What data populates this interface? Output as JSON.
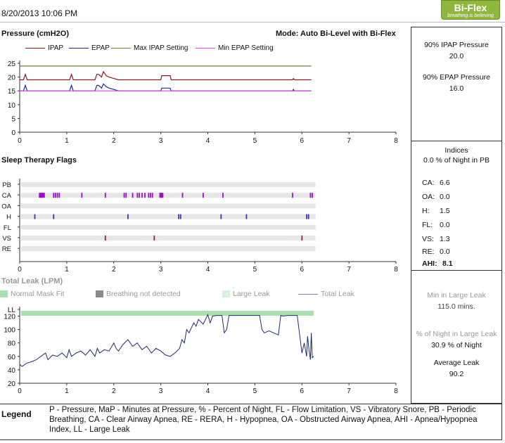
{
  "header": {
    "date": "8/20/2013 10:06 PM",
    "brand_name": "Bi-Flex",
    "brand_tagline": "breathing is believing",
    "brand_color": "#8fb63f"
  },
  "pressure": {
    "title": "Pressure (cmH2O)",
    "mode": "Mode: Auto Bi-Level with Bi-Flex",
    "legend": [
      {
        "label": "IPAP",
        "color": "#8b1a1a"
      },
      {
        "label": "EPAP",
        "color": "#1a2a9c"
      },
      {
        "label": "Max IPAP Setting",
        "color": "#7a7a3a"
      },
      {
        "label": "Min EPAP Setting",
        "color": "#e040e0"
      }
    ],
    "stats": {
      "ipap_label": "90% IPAP Pressure",
      "ipap_value": "20.0",
      "epap_label": "90% EPAP Pressure",
      "epap_value": "16.0"
    }
  },
  "flags": {
    "title": "Sleep Therapy Flags",
    "indices_title": "Indices",
    "pb_night": "0.0 % of Night in PB",
    "indices": [
      {
        "label": "CA:",
        "value": "6.6"
      },
      {
        "label": "OA:",
        "value": "0.0"
      },
      {
        "label": "H:",
        "value": "1.5"
      },
      {
        "label": "FL:",
        "value": "0.0"
      },
      {
        "label": "VS:",
        "value": "1.3"
      },
      {
        "label": "RE:",
        "value": "0.0"
      }
    ],
    "ahi_label": "AHI:",
    "ahi_value": "8.1"
  },
  "leak": {
    "title": "Total Leak (LPM)",
    "legend": [
      {
        "label": "Normal Mask Fit",
        "color": "#a8e0b0",
        "kind": "box"
      },
      {
        "label": "Breathing not detected",
        "color": "#8a8a8a",
        "kind": "box"
      },
      {
        "label": "Large Leak",
        "color": "#d8f0dc",
        "kind": "box"
      },
      {
        "label": "Total Leak",
        "color": "#7a80b8",
        "kind": "line"
      }
    ],
    "stats": {
      "min_label": "Min in Large Leak",
      "min_value": "115.0 mins.",
      "pct_label": "% of Night in Large Leak",
      "pct_value": "30.9 % of Night",
      "avg_label": "Average Leak",
      "avg_value": "90.2"
    }
  },
  "legend": {
    "title": "Legend",
    "text": "P - Pressure, MaP - Minutes at Pressure, % - Percent of Night, FL - Flow Limitation, VS - Vibratory Snore, PB - Periodic Breathing, CA - Clear Airway Apnea, RE - RERA, H - Hypopnea, OA - Obstructed Airway Apnea, AHI - Apnea/Hypopnea Index, LL - Large Leak"
  },
  "chart_data": [
    {
      "type": "line",
      "title": "Pressure (cmH2O)",
      "xlim": [
        0,
        8
      ],
      "ylim": [
        0,
        25
      ],
      "x_ticks": [
        "0",
        "1",
        "2",
        "3",
        "4",
        "5",
        "6",
        "7",
        "8"
      ],
      "y_ticks": [
        "0",
        "5",
        "10",
        "15",
        "20",
        "25"
      ],
      "series": [
        {
          "name": "Max IPAP Setting",
          "color": "#7a7a3a",
          "x": [
            0,
            6.2
          ],
          "y": [
            24,
            24
          ]
        },
        {
          "name": "IPAP",
          "color": "#8b1a1a",
          "x": [
            0,
            0.08,
            0.12,
            0.16,
            0.2,
            1,
            1.06,
            1.1,
            1.14,
            1.6,
            1.64,
            1.68,
            1.74,
            1.78,
            1.84,
            1.9,
            2,
            2.1,
            3,
            3.02,
            3.2,
            3.22,
            5.8,
            5.82,
            5.84,
            6.2
          ],
          "y": [
            19,
            19,
            21,
            19,
            19,
            19,
            19,
            21,
            19,
            19,
            21,
            21,
            20,
            22,
            20.5,
            20,
            19.5,
            19,
            19,
            20.5,
            20.5,
            19,
            19,
            19.5,
            19,
            19
          ]
        },
        {
          "name": "EPAP",
          "color": "#1a2a9c",
          "x": [
            0,
            0.08,
            0.12,
            0.16,
            0.2,
            1,
            1.06,
            1.1,
            1.14,
            1.6,
            1.64,
            1.68,
            1.74,
            1.78,
            1.84,
            1.9,
            2,
            2.1,
            3,
            3.02,
            3.2,
            3.22,
            5.8,
            5.82,
            5.84,
            6.2
          ],
          "y": [
            15,
            15,
            17,
            15,
            15,
            15,
            15,
            17,
            15,
            15,
            17,
            17,
            16,
            17.5,
            16.5,
            16,
            15.5,
            15,
            15,
            16,
            16,
            15,
            15,
            15.5,
            15,
            15
          ]
        },
        {
          "name": "Min EPAP Setting",
          "color": "#e040e0",
          "x": [
            0,
            6.2
          ],
          "y": [
            15,
            15
          ]
        }
      ]
    },
    {
      "type": "scatter",
      "title": "Sleep Therapy Flags",
      "xlim": [
        0,
        8
      ],
      "x_ticks": [
        "0",
        "1",
        "2",
        "3",
        "4",
        "5",
        "6",
        "7",
        "8"
      ],
      "rows": [
        "PB",
        "CA",
        "OA",
        "H",
        "FL",
        "VS",
        "RE"
      ],
      "events": {
        "CA": [
          0.42,
          0.44,
          0.46,
          0.48,
          0.5,
          0.52,
          0.72,
          0.76,
          0.8,
          0.84,
          1.32,
          1.82,
          2.22,
          2.26,
          2.4,
          2.5,
          2.54,
          2.6,
          2.66,
          2.74,
          2.78,
          2.82,
          2.98,
          3.0,
          3.02,
          3.04,
          3.46,
          3.9,
          4.32,
          5.8,
          6.18,
          6.22
        ],
        "H": [
          0.32,
          0.72,
          2.3,
          3.38,
          3.42,
          4.28,
          4.82,
          6.1,
          6.14
        ],
        "VS": [
          1.82,
          2.86,
          6.0
        ]
      },
      "colors": {
        "CA": "#9a10c8",
        "H": "#3a3aa8",
        "VS": "#a02020"
      }
    },
    {
      "type": "line",
      "title": "Total Leak (LPM)",
      "xlim": [
        0,
        8
      ],
      "ylim": [
        20,
        130
      ],
      "x_ticks": [
        "0",
        "1",
        "2",
        "3",
        "4",
        "5",
        "6",
        "7",
        "8"
      ],
      "y_ticks": [
        "LL",
        "120",
        "100",
        "80",
        "60",
        "40",
        "20"
      ],
      "series": [
        {
          "name": "Total Leak",
          "color": "#1a2a6c",
          "x": [
            0,
            0.05,
            0.15,
            0.25,
            0.35,
            0.45,
            0.55,
            0.6,
            0.7,
            0.8,
            0.9,
            1.0,
            1.05,
            1.1,
            1.2,
            1.3,
            1.4,
            1.5,
            1.6,
            1.65,
            1.7,
            1.8,
            1.9,
            2.0,
            2.05,
            2.1,
            2.2,
            2.3,
            2.4,
            2.5,
            2.6,
            2.7,
            2.8,
            2.9,
            3.0,
            3.1,
            3.2,
            3.3,
            3.4,
            3.45,
            3.5,
            3.55,
            3.6,
            3.7,
            3.75,
            3.8,
            3.9,
            4.0,
            4.05,
            4.1,
            4.2,
            4.3,
            4.35,
            4.4,
            4.45,
            4.5,
            5.1,
            5.15,
            5.2,
            5.3,
            5.4,
            5.5,
            5.55,
            5.6,
            5.7,
            5.8,
            5.9,
            6.0,
            6.05,
            6.1,
            6.12,
            6.15,
            6.18,
            6.2,
            6.22,
            6.25
          ],
          "y": [
            48,
            45,
            50,
            52,
            55,
            60,
            65,
            55,
            62,
            60,
            65,
            58,
            70,
            60,
            65,
            68,
            62,
            70,
            60,
            72,
            65,
            70,
            68,
            80,
            72,
            68,
            78,
            85,
            75,
            80,
            70,
            75,
            65,
            72,
            68,
            62,
            60,
            65,
            72,
            85,
            80,
            100,
            95,
            110,
            105,
            115,
            108,
            122,
            110,
            120,
            121,
            121,
            95,
            100,
            121,
            121,
            121,
            100,
            95,
            98,
            95,
            92,
            121,
            120,
            121,
            121,
            121,
            65,
            80,
            60,
            90,
            70,
            55,
            95,
            58,
            60
          ]
        }
      ]
    }
  ]
}
